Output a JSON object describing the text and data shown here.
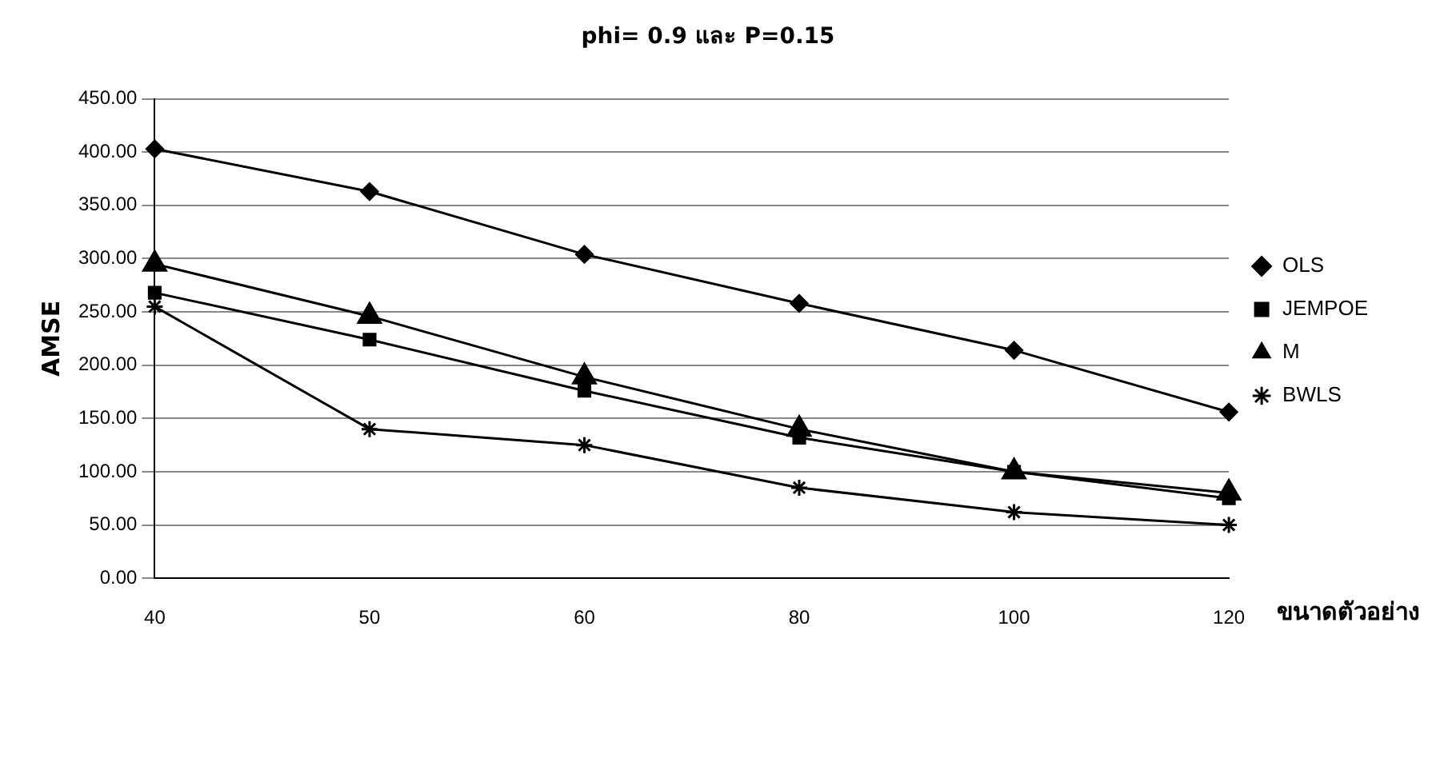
{
  "chart_data": {
    "type": "line",
    "title": "phi= 0.9 และ P=0.15",
    "xlabel": "ขนาดตัวอย่าง",
    "ylabel": "AMSE",
    "categories": [
      "40",
      "50",
      "60",
      "80",
      "100",
      "120"
    ],
    "series": [
      {
        "name": "OLS",
        "color": "#000000",
        "marker": "diamond",
        "values": [
          403,
          363,
          304,
          258,
          214,
          156
        ]
      },
      {
        "name": "JEMPOE",
        "color": "#000000",
        "marker": "square",
        "values": [
          268,
          224,
          176,
          132,
          100,
          75
        ]
      },
      {
        "name": "M",
        "color": "#000000",
        "marker": "triangle",
        "values": [
          295,
          246,
          189,
          140,
          100,
          80
        ]
      },
      {
        "name": "BWLS",
        "color": "#000000",
        "marker": "cross",
        "values": [
          255,
          140,
          125,
          85,
          62,
          50
        ]
      }
    ],
    "ylim": [
      0,
      450
    ],
    "yticks": [
      {
        "value": 0,
        "label": "0.00"
      },
      {
        "value": 50,
        "label": "50.00"
      },
      {
        "value": 100,
        "label": "100.00"
      },
      {
        "value": 150,
        "label": "150.00"
      },
      {
        "value": 200,
        "label": "200.00"
      },
      {
        "value": 250,
        "label": "250.00"
      },
      {
        "value": 300,
        "label": "300.00"
      },
      {
        "value": 350,
        "label": "350.00"
      },
      {
        "value": 400,
        "label": "400.00"
      },
      {
        "value": 450,
        "label": "450.00"
      }
    ],
    "grid": "y",
    "legend": "right",
    "line_style": "solid"
  }
}
